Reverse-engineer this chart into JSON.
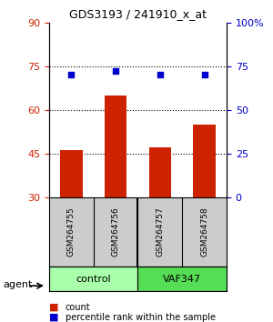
{
  "title": "GDS3193 / 241910_x_at",
  "samples": [
    "GSM264755",
    "GSM264756",
    "GSM264757",
    "GSM264758"
  ],
  "bar_values": [
    46,
    65,
    47,
    55
  ],
  "dot_values": [
    70,
    72,
    70,
    70
  ],
  "bar_color": "#cc2200",
  "dot_color": "#0000cc",
  "left_ylim": [
    30,
    90
  ],
  "left_yticks": [
    30,
    45,
    60,
    75,
    90
  ],
  "right_ylim": [
    0,
    100
  ],
  "right_yticks": [
    0,
    25,
    50,
    75,
    100
  ],
  "right_yticklabels": [
    "0",
    "25",
    "50",
    "75",
    "100%"
  ],
  "hline_values": [
    45,
    60,
    75
  ],
  "groups": [
    {
      "label": "control",
      "indices": [
        0,
        1
      ],
      "color": "#aaffaa"
    },
    {
      "label": "VAF347",
      "indices": [
        2,
        3
      ],
      "color": "#55dd55"
    }
  ],
  "agent_label": "agent",
  "legend_count_label": "count",
  "legend_pct_label": "percentile rank within the sample",
  "background_color": "#ffffff",
  "plot_bg": "#ffffff",
  "left_tick_color": "#cc2200",
  "right_tick_color": "#0000cc",
  "sample_box_color": "#cccccc",
  "grid_linestyle": "dotted"
}
